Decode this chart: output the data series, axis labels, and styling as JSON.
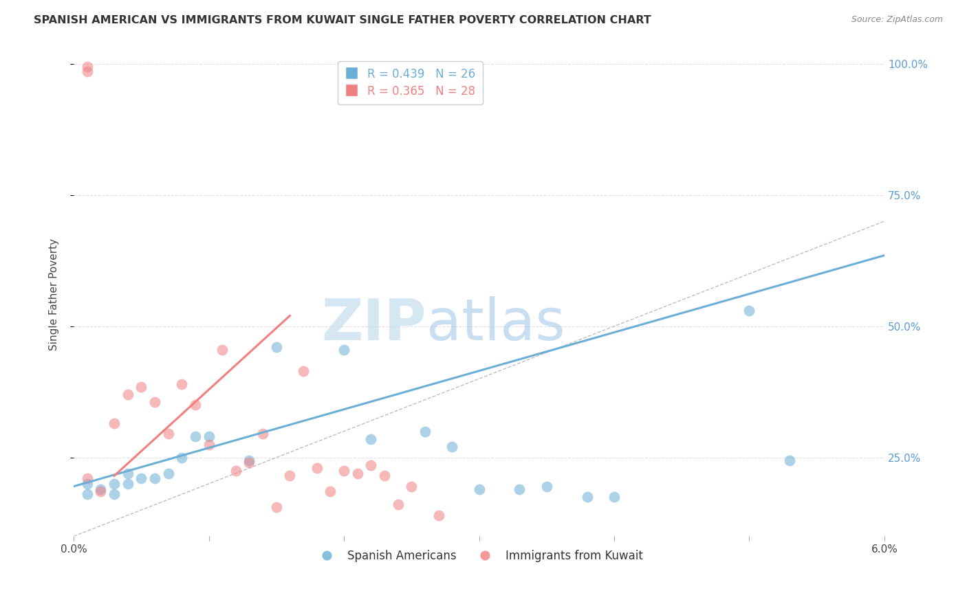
{
  "title": "SPANISH AMERICAN VS IMMIGRANTS FROM KUWAIT SINGLE FATHER POVERTY CORRELATION CHART",
  "source": "Source: ZipAtlas.com",
  "ylabel": "Single Father Poverty",
  "xlim": [
    0.0,
    0.06
  ],
  "ylim": [
    0.1,
    1.02
  ],
  "xticks": [
    0.0,
    0.01,
    0.02,
    0.03,
    0.04,
    0.05,
    0.06
  ],
  "yticks_right": [
    0.25,
    0.5,
    0.75,
    1.0
  ],
  "ytick_labels_right": [
    "25.0%",
    "50.0%",
    "75.0%",
    "100.0%"
  ],
  "watermark_zip": "ZIP",
  "watermark_atlas": "atlas",
  "blue_color": "#6baed6",
  "pink_color": "#f08080",
  "grid_color": "#e0e0e0",
  "background_color": "#ffffff",
  "title_fontsize": 11.5,
  "axis_label_fontsize": 11,
  "tick_fontsize": 11,
  "legend_fontsize": 12,
  "scatter_alpha": 0.55,
  "scatter_size": 130,
  "spanish_americans_x": [
    0.001,
    0.001,
    0.002,
    0.003,
    0.003,
    0.004,
    0.004,
    0.005,
    0.006,
    0.007,
    0.008,
    0.009,
    0.01,
    0.013,
    0.015,
    0.02,
    0.022,
    0.026,
    0.028,
    0.03,
    0.033,
    0.035,
    0.038,
    0.04,
    0.05,
    0.053
  ],
  "spanish_americans_y": [
    0.2,
    0.18,
    0.19,
    0.2,
    0.18,
    0.22,
    0.2,
    0.21,
    0.21,
    0.22,
    0.25,
    0.29,
    0.29,
    0.245,
    0.46,
    0.455,
    0.285,
    0.3,
    0.27,
    0.19,
    0.19,
    0.195,
    0.175,
    0.175,
    0.53,
    0.245
  ],
  "kuwait_immigrants_x": [
    0.001,
    0.001,
    0.001,
    0.002,
    0.003,
    0.004,
    0.005,
    0.006,
    0.007,
    0.008,
    0.009,
    0.01,
    0.011,
    0.012,
    0.013,
    0.014,
    0.015,
    0.016,
    0.017,
    0.018,
    0.019,
    0.02,
    0.021,
    0.022,
    0.023,
    0.024,
    0.025,
    0.027
  ],
  "kuwait_immigrants_y": [
    0.985,
    0.995,
    0.21,
    0.185,
    0.315,
    0.37,
    0.385,
    0.355,
    0.295,
    0.39,
    0.35,
    0.275,
    0.455,
    0.225,
    0.24,
    0.295,
    0.155,
    0.215,
    0.415,
    0.23,
    0.185,
    0.225,
    0.22,
    0.235,
    0.215,
    0.16,
    0.195,
    0.14
  ],
  "blue_trend": [
    0.0,
    0.195,
    0.06,
    0.635
  ],
  "pink_trend": [
    0.003,
    0.215,
    0.016,
    0.52
  ],
  "diag_line": [
    0.0,
    0.1,
    0.06,
    0.7
  ]
}
